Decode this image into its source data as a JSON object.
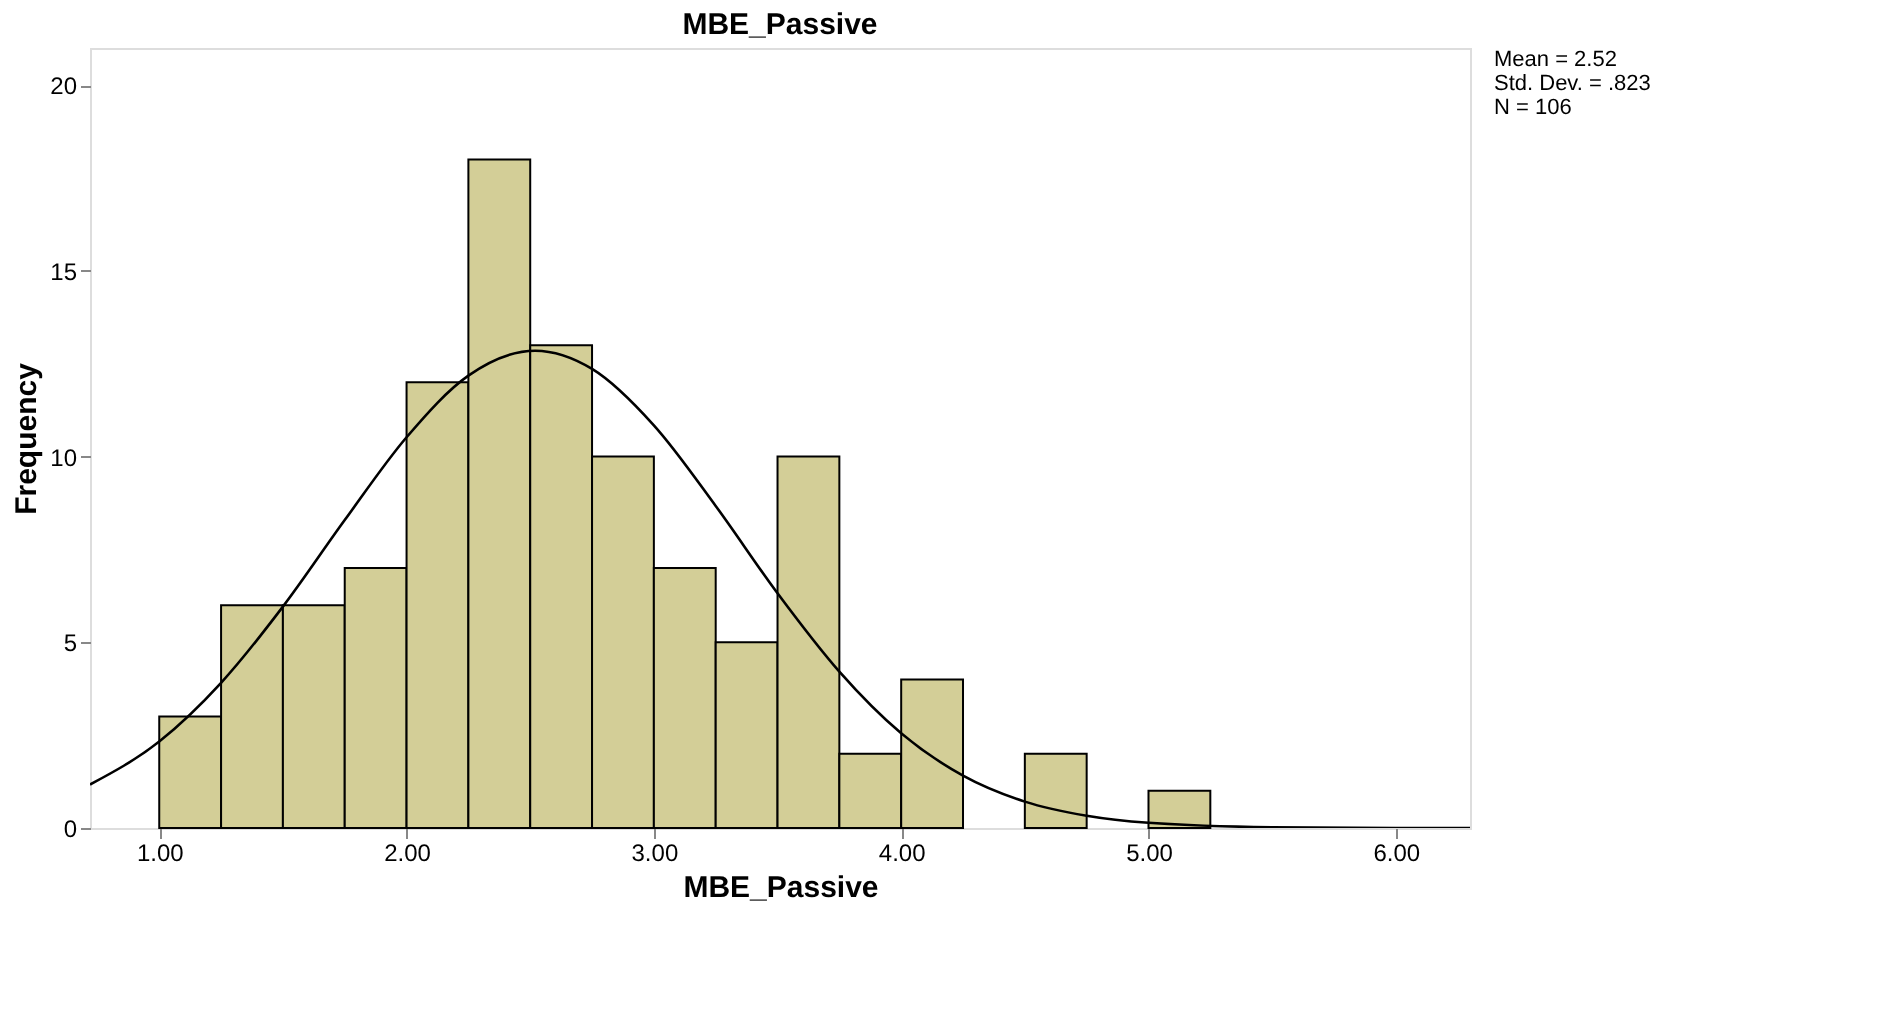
{
  "chart_data": {
    "type": "histogram",
    "title": "MBE_Passive",
    "xlabel": "MBE_Passive",
    "ylabel": "Frequency",
    "bins": [
      1.0,
      1.25,
      1.5,
      1.75,
      2.0,
      2.25,
      2.5,
      2.75,
      3.0,
      3.25,
      3.5,
      3.75,
      4.0,
      4.25,
      4.5,
      4.75,
      5.0,
      5.25
    ],
    "series": [
      {
        "color": "#d3ce97",
        "values": [
          3,
          6,
          6,
          7,
          12,
          18,
          13,
          10,
          7,
          5,
          10,
          2,
          4,
          0,
          2,
          0,
          1
        ]
      },
      {
        "type": "line",
        "color": "#000000",
        "x": [
          0.72,
          1.0,
          1.25,
          1.5,
          1.75,
          2.0,
          2.25,
          2.52,
          2.75,
          3.0,
          3.25,
          3.5,
          3.75,
          4.0,
          4.25,
          4.5,
          4.75,
          5.0,
          5.5,
          6.0,
          6.3
        ],
        "values": [
          1.17,
          2.33,
          3.91,
          5.96,
          8.29,
          10.52,
          12.18,
          12.85,
          12.36,
          10.84,
          8.67,
          6.32,
          4.21,
          2.55,
          1.41,
          0.71,
          0.33,
          0.14,
          0.02,
          0.0,
          0.0
        ]
      }
    ],
    "xlim": [
      0.72,
      6.3
    ],
    "ylim": [
      0,
      21
    ],
    "xticks": [
      {
        "value": 1,
        "label": "1.00"
      },
      {
        "value": 2,
        "label": "2.00"
      },
      {
        "value": 3,
        "label": "3.00"
      },
      {
        "value": 4,
        "label": "4.00"
      },
      {
        "value": 5,
        "label": "5.00"
      },
      {
        "value": 6,
        "label": "6.00"
      }
    ],
    "yticks": [
      0,
      5,
      10,
      15,
      20
    ],
    "grid": false,
    "annotations": [
      "Mean = 2.52",
      "Std. Dev. = .823",
      "N = 106"
    ]
  }
}
